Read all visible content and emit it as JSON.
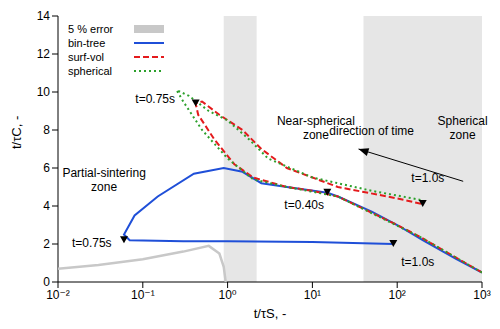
{
  "chart_data": {
    "type": "line",
    "log": "x",
    "legend": "upper left",
    "xlabel": "t/τS, -",
    "ylabel": "t/τC, -",
    "xlim": [
      0.01,
      1000
    ],
    "ylim": [
      0,
      14
    ],
    "xticks": [
      {
        "value": 0.01,
        "label": "10⁻²"
      },
      {
        "value": 0.1,
        "label": "10⁻¹"
      },
      {
        "value": 1,
        "label": "10⁰"
      },
      {
        "value": 10,
        "label": "10¹"
      },
      {
        "value": 100,
        "label": "10²"
      },
      {
        "value": 1000,
        "label": "10³"
      }
    ],
    "yticks": [
      0,
      2,
      4,
      6,
      8,
      10,
      12,
      14
    ],
    "series": [
      {
        "name": "5 % error",
        "color": "#c8c8c8",
        "line_style": "solid",
        "x": [
          0.01,
          0.03,
          0.1,
          0.3,
          0.6,
          0.8,
          0.9,
          0.95
        ],
        "values": [
          0.7,
          0.9,
          1.2,
          1.6,
          1.9,
          1.5,
          0.8,
          0
        ]
      },
      {
        "name": "bin-tree",
        "color": "#1f4fd8",
        "line_style": "solid",
        "x": [
          1000,
          500,
          200,
          100,
          50,
          20,
          15,
          5,
          2.5,
          1.5,
          0.9,
          0.4,
          0.15,
          0.08,
          0.06,
          0.07,
          0.3,
          1,
          10,
          90
        ],
        "values": [
          0.5,
          1.2,
          2.2,
          3.0,
          3.7,
          4.5,
          4.7,
          5.0,
          5.2,
          5.8,
          6.0,
          5.7,
          4.5,
          3.5,
          2.5,
          2.2,
          2.15,
          2.15,
          2.1,
          2.0
        ]
      },
      {
        "name": "surf-vol",
        "color": "#e41a1c",
        "line_style": "dashed",
        "x": [
          1000,
          200,
          100,
          20,
          10,
          5,
          2,
          1.2,
          0.7,
          0.45,
          0.42,
          0.5,
          0.8,
          1.5,
          2.5,
          5,
          20,
          100,
          200
        ],
        "values": [
          0.5,
          2.3,
          3.0,
          4.5,
          4.8,
          5.0,
          5.5,
          6.2,
          7.5,
          8.8,
          9.4,
          9.5,
          8.8,
          8.0,
          7.0,
          6.0,
          5.0,
          4.4,
          4.1
        ]
      },
      {
        "name": "spherical",
        "color": "#2ca02c",
        "line_style": "dotted",
        "x": [
          1000,
          200,
          20,
          5,
          2,
          1,
          0.5,
          0.3,
          0.25,
          0.35,
          0.6,
          1,
          1.8,
          3,
          10,
          50,
          200
        ],
        "values": [
          0.5,
          2.3,
          4.5,
          5.0,
          5.4,
          6.5,
          8.0,
          9.5,
          10.1,
          9.8,
          9.0,
          8.5,
          7.5,
          6.5,
          5.5,
          4.8,
          4.3
        ]
      }
    ],
    "error_regions": [
      [
        0.9,
        2.2
      ],
      [
        40,
        1000
      ]
    ],
    "markers": [
      {
        "x": 0.06,
        "y": 2.2
      },
      {
        "x": 0.42,
        "y": 9.4
      },
      {
        "x": 15,
        "y": 4.7
      },
      {
        "x": 90,
        "y": 2.0
      },
      {
        "x": 200,
        "y": 4.1
      }
    ],
    "annotations": [
      {
        "lines": [
          "Partial-sintering",
          "zone"
        ],
        "x": 0.035,
        "y": 5.7
      },
      {
        "lines": [
          "Near-spherical",
          "zone"
        ],
        "x": 11,
        "y": 8.4
      },
      {
        "lines": [
          "Spherical",
          "zone"
        ],
        "x": 590,
        "y": 8.4
      },
      {
        "lines": [
          "direction of time"
        ],
        "x": 50,
        "y": 7.9
      },
      {
        "lines": [
          "t=0.75s"
        ],
        "x": 0.025,
        "y": 2.0
      },
      {
        "lines": [
          "t=0.75s"
        ],
        "x": 0.14,
        "y": 9.6
      },
      {
        "lines": [
          "t=0.40s"
        ],
        "x": 8,
        "y": 4.0
      },
      {
        "lines": [
          "t=1.0s"
        ],
        "x": 175,
        "y": 1.0
      },
      {
        "lines": [
          "t=1.0s"
        ],
        "x": 230,
        "y": 5.4
      }
    ],
    "arrow": {
      "from": [
        600,
        5.3
      ],
      "to": [
        35,
        7.0
      ]
    }
  }
}
